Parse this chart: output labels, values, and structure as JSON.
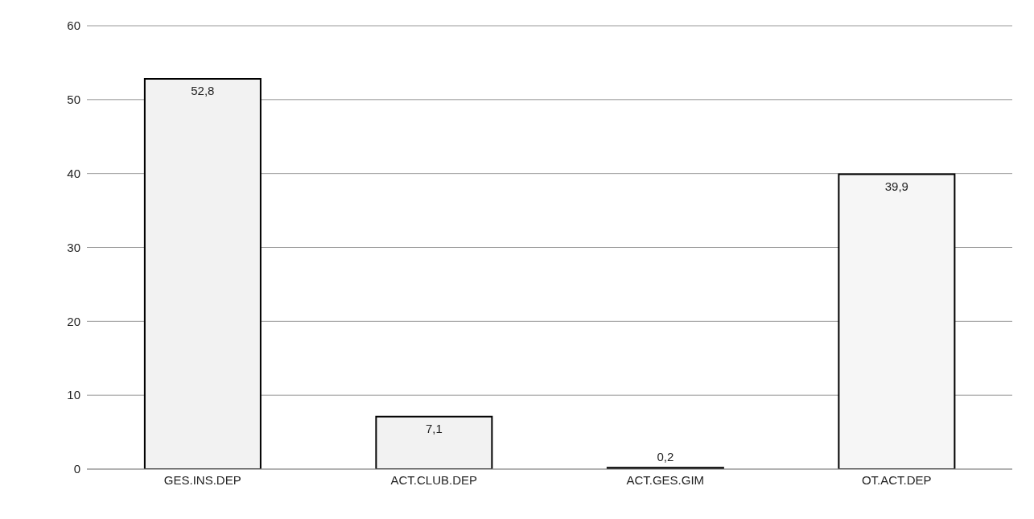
{
  "chart_data": {
    "type": "bar",
    "categories": [
      "GES.INS.DEP",
      "ACT.CLUB.DEP",
      "ACT.GES.GIM",
      "OT.ACT.DEP"
    ],
    "values": [
      52.8,
      7.1,
      0.2,
      39.9
    ],
    "value_labels": [
      "52,8",
      "7,1",
      "0,2",
      "39,9"
    ],
    "colors": [
      "#f2f2f2",
      "#f2f2f2",
      "#f2f2f2",
      "#f6f6f6"
    ],
    "ylim": [
      0,
      60
    ],
    "yticks": [
      0,
      10,
      20,
      30,
      40,
      50,
      60
    ],
    "grid": "y"
  }
}
